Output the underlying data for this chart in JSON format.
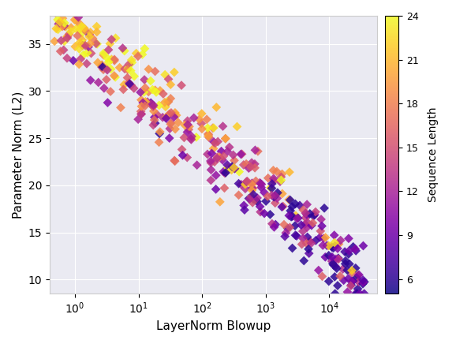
{
  "title": "",
  "xlabel": "LayerNorm Blowup",
  "ylabel": "Parameter Norm (L2)",
  "colorbar_label": "Sequence Length",
  "colorbar_ticks": [
    6,
    9,
    12,
    15,
    18,
    21,
    24
  ],
  "cmap": "plasma",
  "vmin": 5,
  "vmax": 24,
  "ylim": [
    8.5,
    38
  ],
  "marker": "D",
  "markersize": 6,
  "alpha": 0.85,
  "background_color": "#eaeaf2",
  "grid_color": "#ffffff",
  "seed": 42
}
